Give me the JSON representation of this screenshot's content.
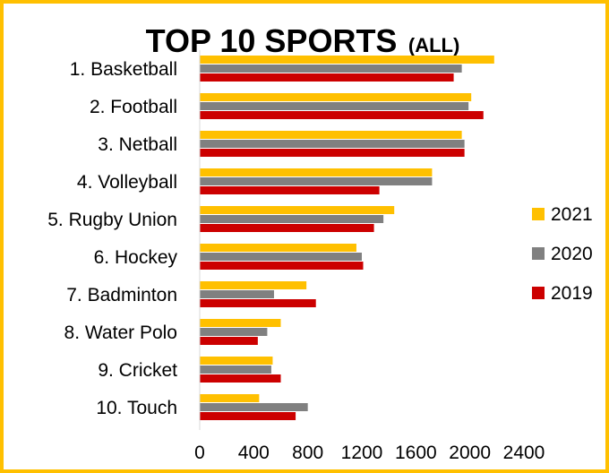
{
  "chart_data": {
    "type": "bar",
    "orientation": "horizontal",
    "title": "TOP 10 SPORTS",
    "subtitle": "(ALL)",
    "xlabel": "",
    "ylabel": "",
    "xlim": [
      0,
      2400
    ],
    "x_ticks": [
      0,
      400,
      800,
      1200,
      1600,
      2000,
      2400
    ],
    "grid": false,
    "legend_position": "right",
    "categories": [
      "1. Basketball",
      "2. Football",
      "3. Netball",
      "4. Volleyball",
      "5. Rugby Union",
      "6. Hockey",
      "7. Badminton",
      "8. Water Polo",
      "9. Cricket",
      "10. Touch"
    ],
    "series": [
      {
        "name": "2021",
        "color": "#ffc000",
        "values": [
          2180,
          2010,
          1940,
          1720,
          1440,
          1160,
          790,
          600,
          540,
          440
        ]
      },
      {
        "name": "2020",
        "color": "#808080",
        "values": [
          1940,
          1990,
          1960,
          1720,
          1360,
          1200,
          550,
          500,
          530,
          800
        ]
      },
      {
        "name": "2019",
        "color": "#cc0000",
        "values": [
          1880,
          2100,
          1960,
          1330,
          1290,
          1210,
          860,
          430,
          600,
          710
        ]
      }
    ]
  },
  "frame_color": "#ffc000"
}
